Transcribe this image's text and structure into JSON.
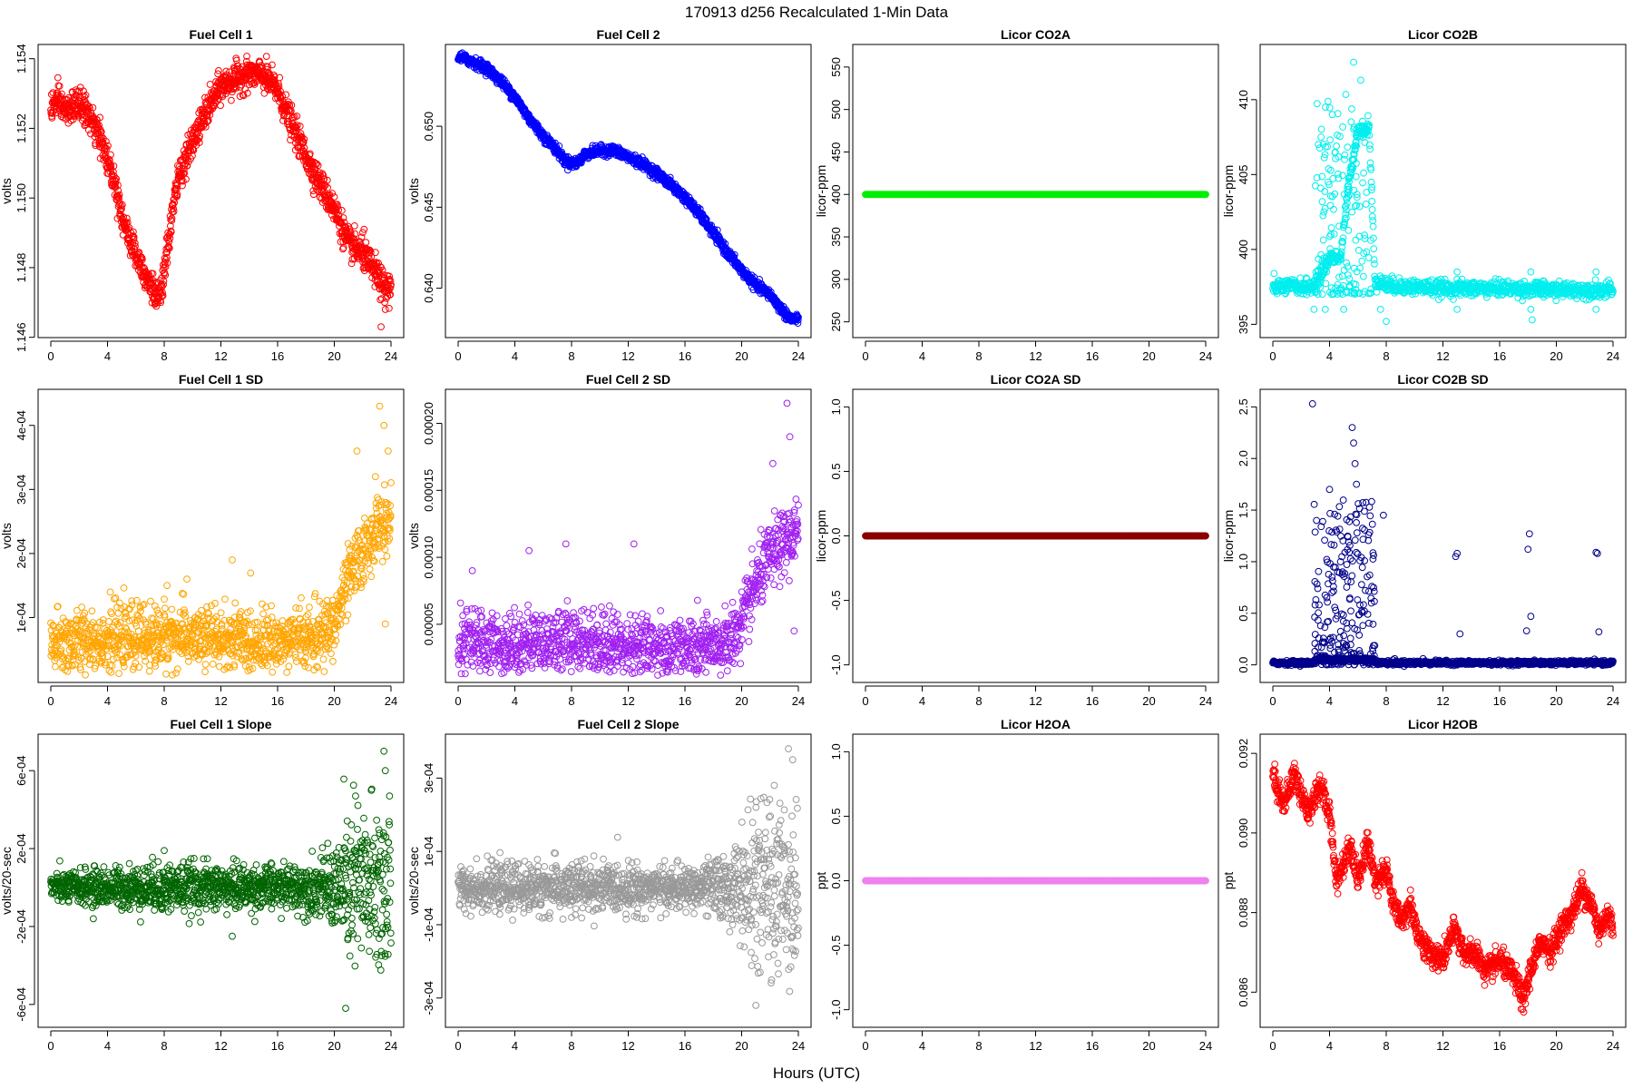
{
  "figure": {
    "title": "170913   d256   Recalculated 1-Min Data",
    "xlabel": "Hours (UTC)",
    "x_ticks": [
      "0",
      "4",
      "8",
      "12",
      "16",
      "20",
      "24"
    ]
  },
  "chart_data": [
    {
      "type": "scatter",
      "title": "Fuel Cell 1",
      "ylabel": "volts",
      "color": "#ff0000",
      "xlim": [
        0,
        24
      ],
      "ylim": [
        1.1462,
        1.1542
      ],
      "yticks": [
        1.146,
        1.148,
        1.15,
        1.152,
        1.154
      ],
      "ytick_labels": [
        "1.146",
        "1.148",
        "1.150",
        "1.152",
        "1.154"
      ],
      "shape": [
        [
          0,
          1.1526
        ],
        [
          0.5,
          1.1528
        ],
        [
          1,
          1.1525
        ],
        [
          2,
          1.1527
        ],
        [
          2.5,
          1.1525
        ],
        [
          3.5,
          1.1517
        ],
        [
          4.5,
          1.1505
        ],
        [
          5.2,
          1.1492
        ],
        [
          6,
          1.1484
        ],
        [
          6.7,
          1.1478
        ],
        [
          7.3,
          1.1473
        ],
        [
          7.6,
          1.147
        ],
        [
          8,
          1.1478
        ],
        [
          8.5,
          1.1494
        ],
        [
          9,
          1.1506
        ],
        [
          10,
          1.1516
        ],
        [
          11,
          1.1525
        ],
        [
          12,
          1.1532
        ],
        [
          13,
          1.1534
        ],
        [
          14,
          1.1536
        ],
        [
          15,
          1.1535
        ],
        [
          16,
          1.1531
        ],
        [
          17,
          1.1521
        ],
        [
          18,
          1.1512
        ],
        [
          19,
          1.1504
        ],
        [
          20,
          1.1497
        ],
        [
          21,
          1.1487
        ],
        [
          22,
          1.1484
        ],
        [
          23,
          1.1478
        ],
        [
          23.5,
          1.1474
        ],
        [
          24,
          1.1474
        ]
      ],
      "noise": 0.00022,
      "outliers": [
        [
          23.3,
          1.1463
        ],
        [
          23.6,
          1.1468
        ],
        [
          22.1,
          1.1491
        ]
      ],
      "n": 1400
    },
    {
      "type": "scatter",
      "title": "Fuel Cell 2",
      "ylabel": "volts",
      "color": "#0000ff",
      "xlim": [
        0,
        24
      ],
      "ylim": [
        0.6374,
        0.6546
      ],
      "yticks": [
        0.64,
        0.645,
        0.65
      ],
      "ytick_labels": [
        "0.640",
        "0.645",
        "0.650"
      ],
      "shape": [
        [
          0,
          0.6543
        ],
        [
          1,
          0.654
        ],
        [
          2,
          0.6536
        ],
        [
          3,
          0.6528
        ],
        [
          4,
          0.6518
        ],
        [
          5,
          0.6505
        ],
        [
          6,
          0.6494
        ],
        [
          7,
          0.6485
        ],
        [
          7.5,
          0.6479
        ],
        [
          8,
          0.6477
        ],
        [
          8.5,
          0.6478
        ],
        [
          9,
          0.6483
        ],
        [
          10,
          0.6485
        ],
        [
          11,
          0.6485
        ],
        [
          12,
          0.6481
        ],
        [
          13,
          0.6477
        ],
        [
          14,
          0.6471
        ],
        [
          15,
          0.6464
        ],
        [
          16,
          0.6456
        ],
        [
          17,
          0.6446
        ],
        [
          18,
          0.6434
        ],
        [
          19,
          0.6422
        ],
        [
          20,
          0.6411
        ],
        [
          21,
          0.6402
        ],
        [
          22,
          0.6396
        ],
        [
          23,
          0.6385
        ],
        [
          23.5,
          0.6381
        ],
        [
          24,
          0.6381
        ]
      ],
      "noise": 0.00015,
      "outliers": [],
      "n": 1400
    },
    {
      "type": "scatter",
      "title": "Licor CO2A",
      "ylabel": "licor-ppm",
      "color": "#00ee00",
      "xlim": [
        0,
        24
      ],
      "ylim": [
        240,
        568
      ],
      "yticks": [
        250,
        300,
        350,
        400,
        450,
        500,
        550
      ],
      "ytick_labels": [
        "250",
        "300",
        "350",
        "400",
        "450",
        "500",
        "550"
      ],
      "shape": [
        [
          0,
          400
        ],
        [
          24,
          400
        ]
      ],
      "noise": 0,
      "outliers": [],
      "n": 700
    },
    {
      "type": "scatter",
      "title": "Licor CO2B",
      "ylabel": "licor-ppm",
      "color": "#00eeee",
      "xlim": [
        0,
        24
      ],
      "ylim": [
        394.6,
        413.2
      ],
      "yticks": [
        395,
        400,
        405,
        410
      ],
      "ytick_labels": [
        "395",
        "400",
        "405",
        "410"
      ],
      "shape": [
        [
          0,
          397.5
        ],
        [
          2.8,
          397.5
        ],
        [
          3.2,
          398.0
        ],
        [
          4,
          399.5
        ],
        [
          4.8,
          399.5
        ],
        [
          5.3,
          404
        ],
        [
          6,
          408
        ],
        [
          6.8,
          408
        ],
        [
          7.2,
          398
        ],
        [
          8,
          397.6
        ],
        [
          12,
          397.4
        ],
        [
          16,
          397.4
        ],
        [
          20,
          397.3
        ],
        [
          24,
          397.3
        ]
      ],
      "noise": 0.25,
      "outliers": [
        [
          3.4,
          407.5
        ],
        [
          4.2,
          409.0
        ],
        [
          3.9,
          404.5
        ],
        [
          3.6,
          402.5
        ],
        [
          4.4,
          406.5
        ],
        [
          5.7,
          412.5
        ],
        [
          6.2,
          411.3
        ],
        [
          4.1,
          401.0
        ],
        [
          2.9,
          396.0
        ],
        [
          3.7,
          396.0
        ],
        [
          5.0,
          396.0
        ],
        [
          7.6,
          396.0
        ],
        [
          8.0,
          395.2
        ],
        [
          13.0,
          398.5
        ],
        [
          13.0,
          396.0
        ],
        [
          18.2,
          398.5
        ],
        [
          18.2,
          396.0
        ],
        [
          18.3,
          395.3
        ],
        [
          22.8,
          398.5
        ],
        [
          22.8,
          396.0
        ]
      ],
      "burst": {
        "x0": 3.0,
        "x1": 7.0,
        "ylo": 397.0,
        "yhi": 410.5,
        "n": 160
      },
      "n": 1100
    },
    {
      "type": "scatter",
      "title": "Fuel Cell 1 SD",
      "ylabel": "volts",
      "color": "#ffa500",
      "xlim": [
        0,
        24
      ],
      "ylim": [
        1e-05,
        0.000445
      ],
      "yticks": [
        0.0001,
        0.0002,
        0.0003,
        0.0004
      ],
      "ytick_labels": [
        "1e-04",
        "2e-04",
        "3e-04",
        "4e-04"
      ],
      "shape": [
        [
          0,
          6e-05
        ],
        [
          8,
          7e-05
        ],
        [
          16,
          6e-05
        ],
        [
          19,
          7e-05
        ],
        [
          20,
          9e-05
        ],
        [
          21,
          0.00016
        ],
        [
          22,
          0.0002
        ],
        [
          23,
          0.00024
        ],
        [
          24,
          0.00025
        ]
      ],
      "noise": 2.5e-05,
      "outliers": [
        [
          12.8,
          0.00019
        ],
        [
          21.6,
          0.00036
        ],
        [
          23.2,
          0.00043
        ],
        [
          23.5,
          0.0004
        ],
        [
          23.8,
          0.00036
        ],
        [
          22.9,
          0.00032
        ],
        [
          23.6,
          9e-05
        ],
        [
          8.2,
          0.00015
        ],
        [
          9.6,
          0.00016
        ]
      ],
      "n": 1300
    },
    {
      "type": "scatter",
      "title": "Fuel Cell 2 SD",
      "ylabel": "volts",
      "color": "#a020f0",
      "xlim": [
        0,
        24
      ],
      "ylim": [
        1.2e-05,
        0.00022
      ],
      "yticks": [
        5e-05,
        0.0001,
        0.00015,
        0.0002
      ],
      "ytick_labels": [
        "0.00005",
        "0.00010",
        "0.00015",
        "0.00020"
      ],
      "shape": [
        [
          0,
          3.5e-05
        ],
        [
          4,
          3.5e-05
        ],
        [
          8,
          3.8e-05
        ],
        [
          16,
          3e-05
        ],
        [
          19,
          3.5e-05
        ],
        [
          20,
          5e-05
        ],
        [
          21,
          8e-05
        ],
        [
          22,
          0.0001
        ],
        [
          23,
          0.00011
        ],
        [
          24,
          0.00012
        ]
      ],
      "noise": 1.2e-05,
      "outliers": [
        [
          1,
          9e-05
        ],
        [
          5,
          0.000105
        ],
        [
          7.6,
          0.00011
        ],
        [
          12.4,
          0.00011
        ],
        [
          23.2,
          0.000215
        ],
        [
          23.4,
          0.00019
        ],
        [
          22.2,
          0.00017
        ],
        [
          23.7,
          4.5e-05
        ]
      ],
      "n": 1300
    },
    {
      "type": "scatter",
      "title": "Licor CO2A SD",
      "ylabel": "licor-ppm",
      "color": "#8b0000",
      "xlim": [
        0,
        24
      ],
      "ylim": [
        -1.08,
        1.08
      ],
      "yticks": [
        -1.0,
        -0.5,
        0.0,
        0.5,
        1.0
      ],
      "ytick_labels": [
        "-1.0",
        "-0.5",
        "0.0",
        "0.5",
        "1.0"
      ],
      "shape": [
        [
          0,
          0
        ],
        [
          24,
          0
        ]
      ],
      "noise": 0,
      "outliers": [],
      "n": 700
    },
    {
      "type": "scatter",
      "title": "Licor CO2B SD",
      "ylabel": "licor-ppm",
      "color": "#00008b",
      "xlim": [
        0,
        24
      ],
      "ylim": [
        -0.1,
        2.6
      ],
      "yticks": [
        0.0,
        0.5,
        1.0,
        1.5,
        2.0,
        2.5
      ],
      "ytick_labels": [
        "0.0",
        "0.5",
        "1.0",
        "1.5",
        "2.0",
        "2.5"
      ],
      "shape": [
        [
          0,
          0.02
        ],
        [
          2.8,
          0.02
        ],
        [
          3.0,
          0.05
        ],
        [
          7.2,
          0.05
        ],
        [
          7.4,
          0.02
        ],
        [
          24,
          0.02
        ]
      ],
      "noise": 0.01,
      "outliers": [
        [
          2.8,
          2.53
        ],
        [
          5.6,
          2.3
        ],
        [
          5.7,
          2.15
        ],
        [
          5.8,
          1.95
        ],
        [
          5.9,
          1.75
        ],
        [
          4.0,
          1.7
        ],
        [
          7.8,
          1.45
        ],
        [
          13.0,
          1.08
        ],
        [
          12.9,
          1.05
        ],
        [
          18.1,
          1.27
        ],
        [
          18.0,
          1.12
        ],
        [
          18.2,
          0.47
        ],
        [
          22.8,
          1.09
        ],
        [
          22.9,
          1.08
        ],
        [
          23.0,
          0.32
        ],
        [
          17.9,
          0.33
        ],
        [
          13.2,
          0.3
        ],
        [
          8.6,
          0.06
        ],
        [
          10.6,
          0.06
        ]
      ],
      "burst": {
        "x0": 2.9,
        "x1": 7.2,
        "ylo": 0.0,
        "yhi": 1.6,
        "n": 240
      },
      "n": 1100
    },
    {
      "type": "scatter",
      "title": "Fuel Cell 1 Slope",
      "ylabel": "volts/20-sec",
      "color": "#006400",
      "xlim": [
        0,
        24
      ],
      "ylim": [
        -0.00068,
        0.00075
      ],
      "yticks": [
        -0.0006,
        -0.0002,
        0.0002,
        0.0006
      ],
      "ytick_labels": [
        "-6e-04",
        "-2e-04",
        "2e-04",
        "6e-04"
      ],
      "shape": [
        [
          0,
          0
        ],
        [
          24,
          0
        ]
      ],
      "noise": 3e-05,
      "spread": [
        [
          0,
          4e-05
        ],
        [
          8,
          7e-05
        ],
        [
          16,
          6e-05
        ],
        [
          19,
          8e-05
        ],
        [
          20,
          0.00012
        ],
        [
          21,
          0.00022
        ],
        [
          24,
          0.00027
        ]
      ],
      "outliers": [
        [
          20.8,
          -0.00062
        ],
        [
          23.5,
          0.0007
        ],
        [
          23.6,
          0.0006
        ],
        [
          21.5,
          0.00047
        ],
        [
          3,
          -0.00016
        ],
        [
          12.8,
          -0.00025
        ],
        [
          8,
          0.00019
        ]
      ],
      "n": 1400
    },
    {
      "type": "scatter",
      "title": "Fuel Cell 2 Slope",
      "ylabel": "volts/20-sec",
      "color": "#999999",
      "xlim": [
        0,
        24
      ],
      "ylim": [
        -0.00036,
        0.0004
      ],
      "yticks": [
        -0.0003,
        -0.0001,
        0.0001,
        0.0003
      ],
      "ytick_labels": [
        "-3e-04",
        "-1e-04",
        "1e-04",
        "3e-04"
      ],
      "shape": [
        [
          0,
          0
        ],
        [
          24,
          0
        ]
      ],
      "noise": 2e-05,
      "spread": [
        [
          0,
          3e-05
        ],
        [
          8,
          4e-05
        ],
        [
          16,
          3e-05
        ],
        [
          19,
          5e-05
        ],
        [
          20,
          8e-05
        ],
        [
          21,
          0.00012
        ],
        [
          24,
          0.00014
        ]
      ],
      "outliers": [
        [
          21.0,
          -0.00032
        ],
        [
          23.3,
          0.00038
        ],
        [
          23.6,
          0.00035
        ],
        [
          22.3,
          0.00028
        ],
        [
          8,
          -8e-05
        ],
        [
          12.6,
          -8e-05
        ],
        [
          1.3,
          8e-05
        ]
      ],
      "n": 1400
    },
    {
      "type": "scatter",
      "title": "Licor H2OA",
      "ylabel": "ppt",
      "color": "#ee82ee",
      "xlim": [
        0,
        24
      ],
      "ylim": [
        -1.08,
        1.08
      ],
      "yticks": [
        -1.0,
        -0.5,
        0.0,
        0.5,
        1.0
      ],
      "ytick_labels": [
        "-1.0",
        "-0.5",
        "0.0",
        "0.5",
        "1.0"
      ],
      "shape": [
        [
          0,
          0
        ],
        [
          24,
          0
        ]
      ],
      "noise": 0,
      "outliers": [],
      "n": 700
    },
    {
      "type": "scatter",
      "title": "Licor H2OB",
      "ylabel": "ppt",
      "color": "#ff0000",
      "xlim": [
        0,
        24
      ],
      "ylim": [
        0.0853,
        0.0923
      ],
      "yticks": [
        0.086,
        0.088,
        0.09,
        0.092
      ],
      "ytick_labels": [
        "0.086",
        "0.088",
        "0.090",
        "0.092"
      ],
      "shape": [
        [
          0,
          0.0915
        ],
        [
          0.8,
          0.0907
        ],
        [
          1.5,
          0.0915
        ],
        [
          2.5,
          0.0905
        ],
        [
          3.3,
          0.0912
        ],
        [
          4,
          0.0905
        ],
        [
          4.5,
          0.0888
        ],
        [
          5.5,
          0.0897
        ],
        [
          6,
          0.0888
        ],
        [
          6.7,
          0.0898
        ],
        [
          7.2,
          0.0888
        ],
        [
          8,
          0.0891
        ],
        [
          8.5,
          0.0882
        ],
        [
          9,
          0.0878
        ],
        [
          9.7,
          0.0882
        ],
        [
          10.3,
          0.0874
        ],
        [
          11,
          0.087
        ],
        [
          12,
          0.0868
        ],
        [
          12.8,
          0.0876
        ],
        [
          13.5,
          0.087
        ],
        [
          14.5,
          0.0869
        ],
        [
          15,
          0.0865
        ],
        [
          16,
          0.0868
        ],
        [
          17,
          0.0864
        ],
        [
          17.7,
          0.0858
        ],
        [
          18.2,
          0.0866
        ],
        [
          19,
          0.0873
        ],
        [
          19.6,
          0.087
        ],
        [
          20.3,
          0.0876
        ],
        [
          21,
          0.0879
        ],
        [
          21.8,
          0.0886
        ],
        [
          22.5,
          0.0882
        ],
        [
          23,
          0.0875
        ],
        [
          23.6,
          0.088
        ],
        [
          24,
          0.0876
        ]
      ],
      "noise": 0.00016,
      "outliers": [
        [
          17.7,
          0.0855
        ],
        [
          21.8,
          0.089
        ]
      ],
      "n": 1400
    }
  ]
}
